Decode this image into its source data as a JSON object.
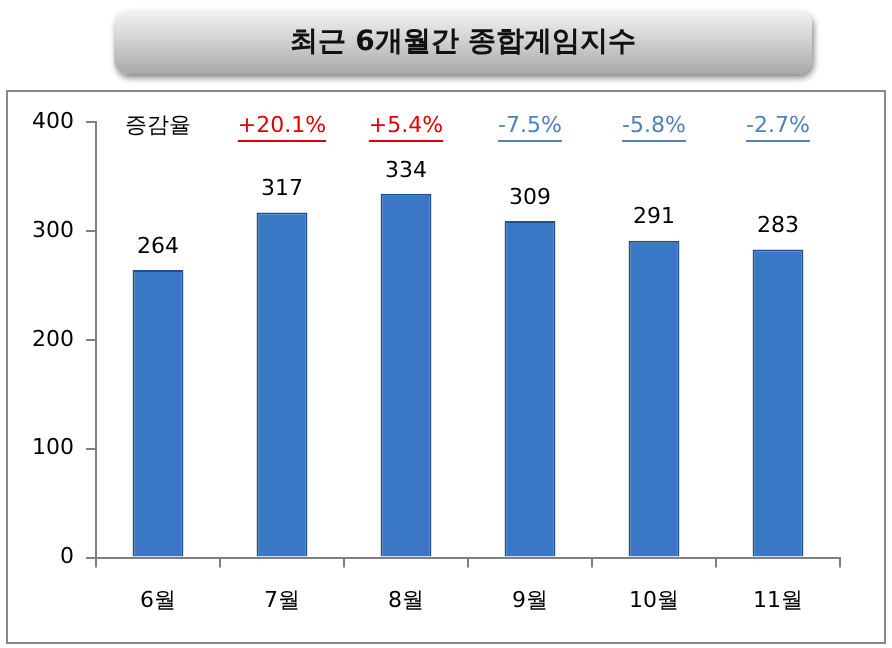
{
  "chart_data": {
    "type": "bar",
    "title": "최근 6개월간 종합게임지수",
    "categories": [
      "6월",
      "7월",
      "8월",
      "9월",
      "10월",
      "11월"
    ],
    "values": [
      264,
      317,
      334,
      309,
      291,
      283
    ],
    "color": "#3a78c6",
    "ylim": [
      0,
      400
    ],
    "yticks": [
      0,
      100,
      200,
      300,
      400
    ],
    "grid": false,
    "legend": false,
    "data_labels": true,
    "annotations": [
      "증감율",
      "+20.1%",
      "+5.4%",
      "-7.5%",
      "-5.8%",
      "-2.7%"
    ]
  }
}
